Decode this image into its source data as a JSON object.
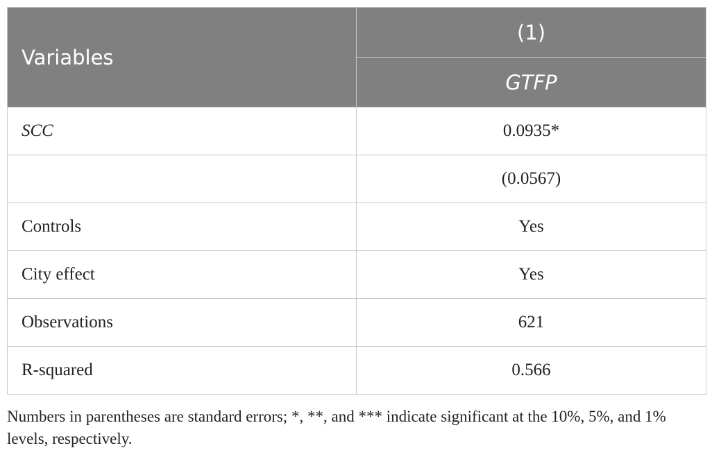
{
  "table": {
    "header": {
      "variables": "Variables",
      "model": "(1)",
      "dependent": "GTFP"
    },
    "rows": [
      {
        "label": "SCC",
        "value": "0.0935*",
        "italic": true
      },
      {
        "label": null,
        "value": "(0.0567)"
      },
      {
        "label": "Controls",
        "value": "Yes"
      },
      {
        "label": "City effect",
        "value": "Yes"
      },
      {
        "label": "Observations",
        "value": "621"
      },
      {
        "label": "R-squared",
        "value": "0.566"
      }
    ]
  },
  "footnote": "Numbers in parentheses are standard errors; *, **, and *** indicate significant at the 10%, 5%, and 1% levels, respectively."
}
